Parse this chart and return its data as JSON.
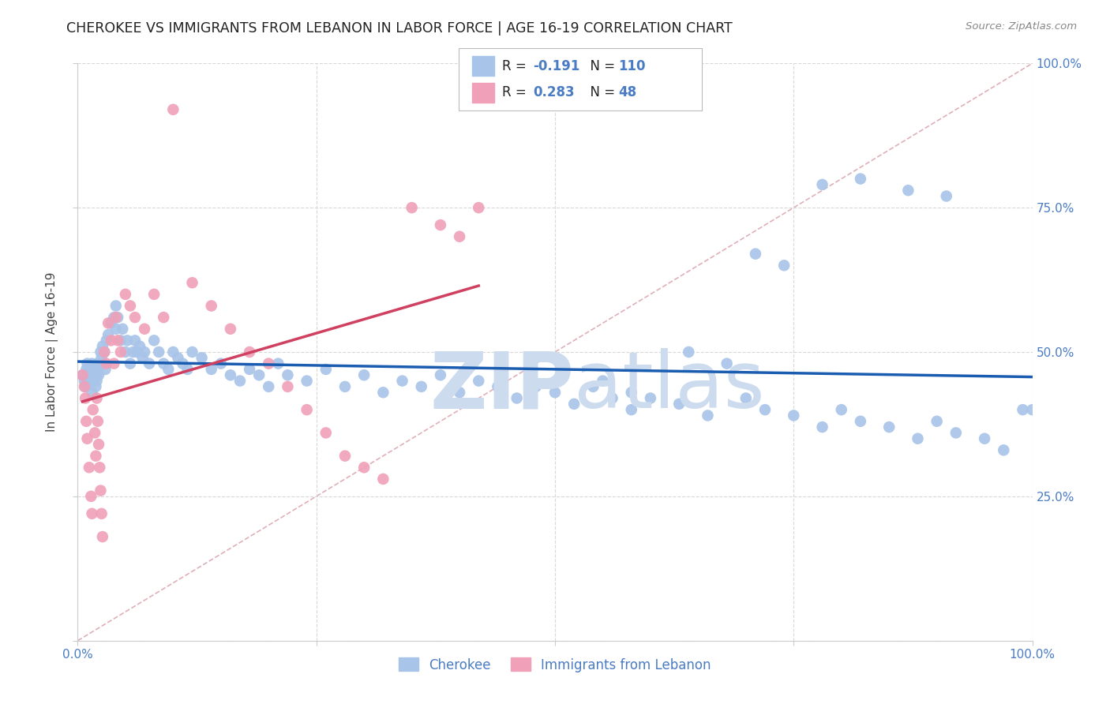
{
  "title": "CHEROKEE VS IMMIGRANTS FROM LEBANON IN LABOR FORCE | AGE 16-19 CORRELATION CHART",
  "source": "Source: ZipAtlas.com",
  "ylabel": "In Labor Force | Age 16-19",
  "xlim": [
    0,
    1.0
  ],
  "ylim": [
    0,
    1.0
  ],
  "background_color": "#ffffff",
  "grid_color": "#d8d8d8",
  "watermark_color": "#ccdcee",
  "cherokee_color": "#a8c4e8",
  "lebanon_color": "#f0a0b8",
  "cherokee_line_color": "#1a5cb0",
  "lebanon_line_color": "#d04060",
  "diagonal_color": "#e0b0b8",
  "tick_label_color": "#4a7cc4",
  "title_color": "#222222",
  "source_color": "#888888",
  "legend_text_color": "#222222",
  "legend_value_color": "#4a7cc4",
  "cherokee_r": "-0.191",
  "cherokee_n": "110",
  "lebanon_r": "0.283",
  "lebanon_n": "48",
  "cherokee_x": [
    0.005,
    0.007,
    0.008,
    0.009,
    0.01,
    0.01,
    0.012,
    0.013,
    0.014,
    0.015,
    0.015,
    0.016,
    0.017,
    0.018,
    0.019,
    0.02,
    0.02,
    0.02,
    0.021,
    0.022,
    0.023,
    0.024,
    0.025,
    0.026,
    0.027,
    0.028,
    0.029,
    0.03,
    0.032,
    0.035,
    0.038,
    0.04,
    0.04,
    0.042,
    0.045,
    0.047,
    0.05,
    0.052,
    0.055,
    0.058,
    0.06,
    0.062,
    0.065,
    0.068,
    0.07,
    0.075,
    0.08,
    0.085,
    0.09,
    0.095,
    0.1,
    0.105,
    0.11,
    0.115,
    0.12,
    0.13,
    0.14,
    0.15,
    0.16,
    0.17,
    0.18,
    0.19,
    0.2,
    0.21,
    0.22,
    0.24,
    0.26,
    0.28,
    0.3,
    0.32,
    0.34,
    0.36,
    0.38,
    0.4,
    0.42,
    0.44,
    0.46,
    0.48,
    0.5,
    0.52,
    0.54,
    0.56,
    0.58,
    0.6,
    0.63,
    0.66,
    0.7,
    0.72,
    0.75,
    0.78,
    0.8,
    0.82,
    0.85,
    0.88,
    0.9,
    0.92,
    0.95,
    0.97,
    0.99,
    1.0,
    0.78,
    0.82,
    0.87,
    0.91,
    0.64,
    0.68,
    0.71,
    0.74,
    0.55,
    0.58
  ],
  "cherokee_y": [
    0.46,
    0.45,
    0.44,
    0.47,
    0.46,
    0.48,
    0.45,
    0.47,
    0.46,
    0.48,
    0.43,
    0.46,
    0.45,
    0.47,
    0.44,
    0.48,
    0.46,
    0.45,
    0.47,
    0.46,
    0.48,
    0.5,
    0.49,
    0.51,
    0.48,
    0.5,
    0.47,
    0.52,
    0.53,
    0.55,
    0.56,
    0.58,
    0.54,
    0.56,
    0.52,
    0.54,
    0.5,
    0.52,
    0.48,
    0.5,
    0.52,
    0.5,
    0.51,
    0.49,
    0.5,
    0.48,
    0.52,
    0.5,
    0.48,
    0.47,
    0.5,
    0.49,
    0.48,
    0.47,
    0.5,
    0.49,
    0.47,
    0.48,
    0.46,
    0.45,
    0.47,
    0.46,
    0.44,
    0.48,
    0.46,
    0.45,
    0.47,
    0.44,
    0.46,
    0.43,
    0.45,
    0.44,
    0.46,
    0.43,
    0.45,
    0.44,
    0.42,
    0.44,
    0.43,
    0.41,
    0.44,
    0.42,
    0.4,
    0.42,
    0.41,
    0.39,
    0.42,
    0.4,
    0.39,
    0.37,
    0.4,
    0.38,
    0.37,
    0.35,
    0.38,
    0.36,
    0.35,
    0.33,
    0.4,
    0.4,
    0.79,
    0.8,
    0.78,
    0.77,
    0.5,
    0.48,
    0.67,
    0.65,
    0.45,
    0.43
  ],
  "lebanon_x": [
    0.005,
    0.007,
    0.008,
    0.009,
    0.01,
    0.012,
    0.014,
    0.015,
    0.016,
    0.018,
    0.019,
    0.02,
    0.021,
    0.022,
    0.023,
    0.024,
    0.025,
    0.026,
    0.028,
    0.03,
    0.032,
    0.035,
    0.038,
    0.04,
    0.042,
    0.045,
    0.05,
    0.055,
    0.06,
    0.07,
    0.08,
    0.09,
    0.1,
    0.12,
    0.14,
    0.16,
    0.18,
    0.2,
    0.22,
    0.24,
    0.26,
    0.28,
    0.3,
    0.32,
    0.35,
    0.38,
    0.4,
    0.42
  ],
  "lebanon_y": [
    0.46,
    0.44,
    0.42,
    0.38,
    0.35,
    0.3,
    0.25,
    0.22,
    0.4,
    0.36,
    0.32,
    0.42,
    0.38,
    0.34,
    0.3,
    0.26,
    0.22,
    0.18,
    0.5,
    0.48,
    0.55,
    0.52,
    0.48,
    0.56,
    0.52,
    0.5,
    0.6,
    0.58,
    0.56,
    0.54,
    0.6,
    0.56,
    0.92,
    0.62,
    0.58,
    0.54,
    0.5,
    0.48,
    0.44,
    0.4,
    0.36,
    0.32,
    0.3,
    0.28,
    0.75,
    0.72,
    0.7,
    0.75
  ]
}
